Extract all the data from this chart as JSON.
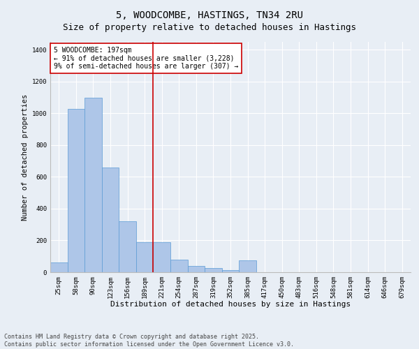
{
  "title": "5, WOODCOMBE, HASTINGS, TN34 2RU",
  "subtitle": "Size of property relative to detached houses in Hastings",
  "xlabel": "Distribution of detached houses by size in Hastings",
  "ylabel": "Number of detached properties",
  "categories": [
    "25sqm",
    "58sqm",
    "90sqm",
    "123sqm",
    "156sqm",
    "189sqm",
    "221sqm",
    "254sqm",
    "287sqm",
    "319sqm",
    "352sqm",
    "385sqm",
    "417sqm",
    "450sqm",
    "483sqm",
    "516sqm",
    "548sqm",
    "581sqm",
    "614sqm",
    "646sqm",
    "679sqm"
  ],
  "values": [
    60,
    1030,
    1100,
    660,
    320,
    190,
    190,
    80,
    40,
    25,
    15,
    75,
    0,
    0,
    0,
    0,
    0,
    0,
    0,
    0,
    0
  ],
  "bar_color": "#aec6e8",
  "bar_edge_color": "#5b9bd5",
  "vline_index": 5,
  "vline_color": "#cc0000",
  "annotation_text": "5 WOODCOMBE: 197sqm\n← 91% of detached houses are smaller (3,228)\n9% of semi-detached houses are larger (307) →",
  "annotation_box_color": "#ffffff",
  "annotation_box_edge": "#cc0000",
  "ylim": [
    0,
    1450
  ],
  "yticks": [
    0,
    200,
    400,
    600,
    800,
    1000,
    1200,
    1400
  ],
  "bg_color": "#e8eef5",
  "plot_bg_color": "#e8eef5",
  "footer": "Contains HM Land Registry data © Crown copyright and database right 2025.\nContains public sector information licensed under the Open Government Licence v3.0.",
  "title_fontsize": 10,
  "xlabel_fontsize": 8,
  "ylabel_fontsize": 7.5,
  "tick_fontsize": 6.5,
  "annotation_fontsize": 7,
  "footer_fontsize": 6
}
